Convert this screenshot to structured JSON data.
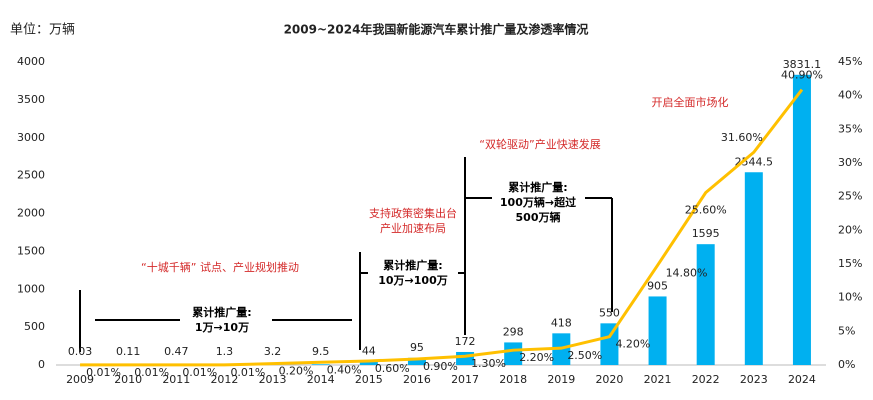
{
  "chart_data": {
    "type": "bar-line",
    "title": "2009~2024年我国新能源汽车累计推广量及渗透率情况",
    "unit": "单位：万辆",
    "categories": [
      "2009",
      "2010",
      "2011",
      "2012",
      "2013",
      "2014",
      "2015",
      "2016",
      "2017",
      "2018",
      "2019",
      "2020",
      "2021",
      "2022",
      "2023",
      "2024"
    ],
    "series": [
      {
        "type": "bar",
        "color": "#00b0f0",
        "values": [
          0.03,
          0.11,
          0.47,
          1.3,
          3.2,
          9.5,
          44,
          95,
          172,
          298,
          418,
          550,
          905,
          1595,
          2544.5,
          3831.1
        ]
      },
      {
        "type": "line",
        "axis": "y2",
        "color": "#ffc000",
        "values": [
          0.01,
          0.01,
          0.01,
          0.01,
          0.2,
          0.4,
          0.6,
          0.9,
          1.3,
          2.2,
          2.5,
          4.2,
          14.8,
          25.6,
          31.6,
          40.9
        ],
        "value_labels": [
          "0.01%",
          "0.01%",
          "0.01%",
          "0.01%",
          "0.20%",
          "0.40%",
          "0.60%",
          "0.90%",
          "1.30%",
          "2.20%",
          "2.50%",
          "4.20%",
          "14.80%",
          "25.60%",
          "31.60%",
          "40.90%"
        ]
      }
    ],
    "ylim": [
      0,
      4000
    ],
    "yticks": [
      0,
      500,
      1000,
      1500,
      2000,
      2500,
      3000,
      3500,
      4000
    ],
    "y2lim": [
      0,
      45
    ],
    "y2ticks": [
      {
        "value": 0,
        "label": "0%"
      },
      {
        "value": 5,
        "label": "5%"
      },
      {
        "value": 10,
        "label": "10%"
      },
      {
        "value": 15,
        "label": "15%"
      },
      {
        "value": 20,
        "label": "20%"
      },
      {
        "value": 25,
        "label": "25%"
      },
      {
        "value": 30,
        "label": "30%"
      },
      {
        "value": 35,
        "label": "35%"
      },
      {
        "value": 40,
        "label": "40%"
      },
      {
        "value": 45,
        "label": "45%"
      }
    ],
    "annotations": [
      {
        "color": "#d42a2a",
        "lines": [
          "“十城千辆” 试点、产业规划推动"
        ]
      },
      {
        "color": "#000000",
        "bold": true,
        "lines": [
          "累计推广量:",
          "1万→10万"
        ]
      },
      {
        "color": "#d42a2a",
        "lines": [
          "支持政策密集出台",
          "产业加速布局"
        ]
      },
      {
        "color": "#000000",
        "bold": true,
        "lines": [
          "累计推广量:",
          "10万→100万"
        ]
      },
      {
        "color": "#d42a2a",
        "lines": [
          "“双轮驱动”产业快速发展"
        ]
      },
      {
        "color": "#000000",
        "bold": true,
        "lines": [
          "累计推广量:",
          "100万辆→超过",
          "500万辆"
        ]
      },
      {
        "color": "#d42a2a",
        "lines": [
          "开启全面市场化"
        ]
      }
    ]
  }
}
